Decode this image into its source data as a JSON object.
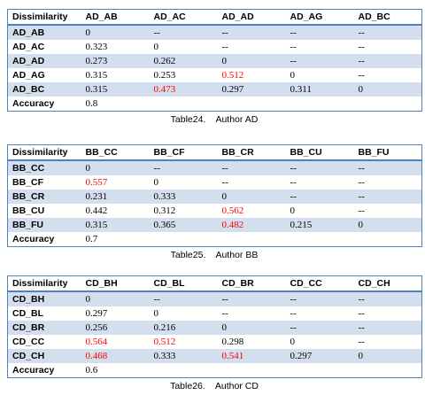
{
  "highlight_color": "#ff0000",
  "header_rule_color": "#4f81bd",
  "shade_color": "#d3dfee",
  "tables": [
    {
      "headers": [
        "Dissimilarity",
        "AD_AB",
        "AD_AC",
        "AD_AD",
        "AD_AG",
        "AD_BC"
      ],
      "rows": [
        {
          "label": "AD_AB",
          "cells": [
            "0",
            "--",
            "--",
            "--",
            "--"
          ],
          "red": []
        },
        {
          "label": "AD_AC",
          "cells": [
            "0.323",
            "0",
            "--",
            "--",
            "--"
          ],
          "red": []
        },
        {
          "label": "AD_AD",
          "cells": [
            "0.273",
            "0.262",
            "0",
            "--",
            "--"
          ],
          "red": []
        },
        {
          "label": "AD_AG",
          "cells": [
            "0.315",
            "0.253",
            "0.512",
            "0",
            "--"
          ],
          "red": [
            2
          ]
        },
        {
          "label": "AD_BC",
          "cells": [
            "0.315",
            "0.473",
            "0.297",
            "0.311",
            "0"
          ],
          "red": [
            1
          ]
        }
      ],
      "accuracy_label": "Accuracy",
      "accuracy": "0.8",
      "caption": "Table24.    Author AD"
    },
    {
      "headers": [
        "Dissimilarity",
        "BB_CC",
        "BB_CF",
        "BB_CR",
        "BB_CU",
        "BB_FU"
      ],
      "rows": [
        {
          "label": "BB_CC",
          "cells": [
            "0",
            "--",
            "--",
            "--",
            "--"
          ],
          "red": []
        },
        {
          "label": "BB_CF",
          "cells": [
            "0.557",
            "0",
            "--",
            "--",
            "--"
          ],
          "red": [
            0
          ]
        },
        {
          "label": "BB_CR",
          "cells": [
            "0.231",
            "0.333",
            "0",
            "--",
            "--"
          ],
          "red": []
        },
        {
          "label": "BB_CU",
          "cells": [
            "0.442",
            "0.312",
            "0.562",
            "0",
            "--"
          ],
          "red": [
            2
          ]
        },
        {
          "label": "BB_FU",
          "cells": [
            "0.315",
            "0.365",
            "0.482",
            "0.215",
            "0"
          ],
          "red": [
            2
          ]
        }
      ],
      "accuracy_label": "Accuracy",
      "accuracy": "0.7",
      "caption": "Table25.    Author BB"
    },
    {
      "headers": [
        "Dissimilarity",
        "CD_BH",
        "CD_BL",
        "CD_BR",
        "CD_CC",
        "CD_CH"
      ],
      "rows": [
        {
          "label": "CD_BH",
          "cells": [
            "0",
            "--",
            "--",
            "--",
            "--"
          ],
          "red": []
        },
        {
          "label": "CD_BL",
          "cells": [
            "0.297",
            "0",
            "--",
            "--",
            "--"
          ],
          "red": []
        },
        {
          "label": "CD_BR",
          "cells": [
            "0.256",
            "0.216",
            "0",
            "--",
            "--"
          ],
          "red": []
        },
        {
          "label": "CD_CC",
          "cells": [
            "0.564",
            "0.512",
            "0.298",
            "0",
            "--"
          ],
          "red": [
            0,
            1
          ]
        },
        {
          "label": "CD_CH",
          "cells": [
            "0.468",
            "0.333",
            "0.541",
            "0.297",
            "0"
          ],
          "red": [
            0,
            2
          ]
        }
      ],
      "accuracy_label": "Accuracy",
      "accuracy": "0.6",
      "caption": "Table26.    Author CD"
    }
  ]
}
